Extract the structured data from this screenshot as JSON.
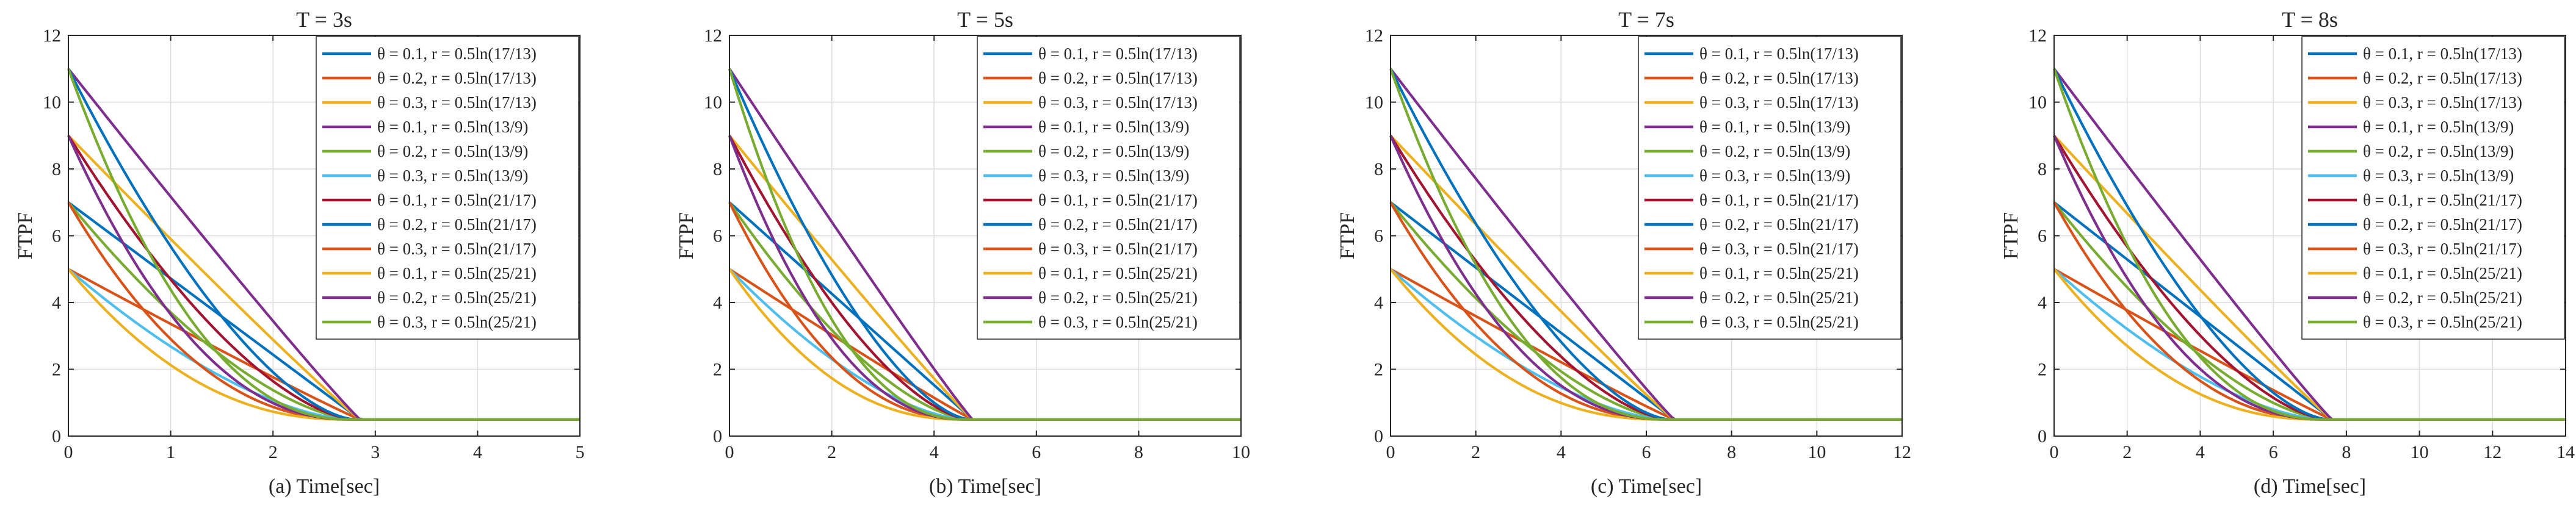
{
  "figure": {
    "ylabel": "FTPF",
    "legend_labels": [
      "θ = 0.1, r = 0.5ln(17/13)",
      "θ = 0.2, r = 0.5ln(17/13)",
      "θ = 0.3, r = 0.5ln(17/13)",
      "θ = 0.1, r = 0.5ln(13/9)",
      "θ = 0.2, r = 0.5ln(13/9)",
      "θ = 0.3, r = 0.5ln(13/9)",
      "θ = 0.1, r = 0.5ln(21/17)",
      "θ = 0.2, r = 0.5ln(21/17)",
      "θ = 0.3, r = 0.5ln(21/17)",
      "θ = 0.1, r = 0.5ln(25/21)",
      "θ = 0.2, r = 0.5ln(25/21)",
      "θ = 0.3, r = 0.5ln(25/21)"
    ],
    "series_colors": [
      "#0072BD",
      "#D95319",
      "#EDB120",
      "#7E2F8E",
      "#77AC30",
      "#4DBEEE",
      "#A2142F",
      "#0072BD",
      "#D95319",
      "#EDB120",
      "#7E2F8E",
      "#77AC30"
    ]
  },
  "chart_data": [
    {
      "type": "line",
      "title": "T = 3s",
      "xlabel": "(a) Time[sec]",
      "ylabel": "FTPF",
      "xlim": [
        0,
        5
      ],
      "ylim": [
        0,
        12
      ],
      "xticks": [
        0,
        1,
        2,
        3,
        4,
        5
      ],
      "yticks": [
        0,
        2,
        4,
        6,
        8,
        10,
        12
      ],
      "grid": true,
      "legend_position": "top-right",
      "settle_value": 0.5,
      "series": [
        {
          "name": "θ = 0.1, r = 0.5ln(17/13)",
          "initial": 7,
          "settle_time": 2.85,
          "exponent": 1.0
        },
        {
          "name": "θ = 0.2, r = 0.5ln(17/13)",
          "initial": 5,
          "settle_time": 2.85,
          "exponent": 1.05
        },
        {
          "name": "θ = 0.3, r = 0.5ln(17/13)",
          "initial": 9,
          "settle_time": 2.85,
          "exponent": 1.05
        },
        {
          "name": "θ = 0.1, r = 0.5ln(13/9)",
          "initial": 11,
          "settle_time": 2.85,
          "exponent": 1.05
        },
        {
          "name": "θ = 0.2, r = 0.5ln(13/9)",
          "initial": 7,
          "settle_time": 2.8,
          "exponent": 1.6
        },
        {
          "name": "θ = 0.3, r = 0.5ln(13/9)",
          "initial": 5,
          "settle_time": 2.75,
          "exponent": 1.6
        },
        {
          "name": "θ = 0.1, r = 0.5ln(21/17)",
          "initial": 9,
          "settle_time": 2.8,
          "exponent": 1.6
        },
        {
          "name": "θ = 0.2, r = 0.5ln(21/17)",
          "initial": 11,
          "settle_time": 2.8,
          "exponent": 1.6
        },
        {
          "name": "θ = 0.3, r = 0.5ln(21/17)",
          "initial": 7,
          "settle_time": 2.75,
          "exponent": 2.2
        },
        {
          "name": "θ = 0.1, r = 0.5ln(25/21)",
          "initial": 5,
          "settle_time": 2.7,
          "exponent": 2.2
        },
        {
          "name": "θ = 0.2, r = 0.5ln(25/21)",
          "initial": 9,
          "settle_time": 2.75,
          "exponent": 2.2
        },
        {
          "name": "θ = 0.3, r = 0.5ln(25/21)",
          "initial": 11,
          "settle_time": 2.75,
          "exponent": 2.2
        }
      ]
    },
    {
      "type": "line",
      "title": "T = 5s",
      "xlabel": "(b) Time[sec]",
      "ylabel": "FTPF",
      "xlim": [
        0,
        10
      ],
      "ylim": [
        0,
        12
      ],
      "xticks": [
        0,
        2,
        4,
        6,
        8,
        10
      ],
      "yticks": [
        0,
        2,
        4,
        6,
        8,
        10,
        12
      ],
      "grid": true,
      "legend_position": "top-right",
      "settle_value": 0.5,
      "series": [
        {
          "name": "θ = 0.1, r = 0.5ln(17/13)",
          "initial": 7,
          "settle_time": 4.75,
          "exponent": 1.0
        },
        {
          "name": "θ = 0.2, r = 0.5ln(17/13)",
          "initial": 5,
          "settle_time": 4.75,
          "exponent": 1.05
        },
        {
          "name": "θ = 0.3, r = 0.5ln(17/13)",
          "initial": 9,
          "settle_time": 4.75,
          "exponent": 1.05
        },
        {
          "name": "θ = 0.1, r = 0.5ln(13/9)",
          "initial": 11,
          "settle_time": 4.75,
          "exponent": 1.05
        },
        {
          "name": "θ = 0.2, r = 0.5ln(13/9)",
          "initial": 7,
          "settle_time": 4.7,
          "exponent": 1.6
        },
        {
          "name": "θ = 0.3, r = 0.5ln(13/9)",
          "initial": 5,
          "settle_time": 4.6,
          "exponent": 1.6
        },
        {
          "name": "θ = 0.1, r = 0.5ln(21/17)",
          "initial": 9,
          "settle_time": 4.7,
          "exponent": 1.6
        },
        {
          "name": "θ = 0.2, r = 0.5ln(21/17)",
          "initial": 11,
          "settle_time": 4.7,
          "exponent": 1.6
        },
        {
          "name": "θ = 0.3, r = 0.5ln(21/17)",
          "initial": 7,
          "settle_time": 4.6,
          "exponent": 2.2
        },
        {
          "name": "θ = 0.1, r = 0.5ln(25/21)",
          "initial": 5,
          "settle_time": 4.5,
          "exponent": 2.2
        },
        {
          "name": "θ = 0.2, r = 0.5ln(25/21)",
          "initial": 9,
          "settle_time": 4.6,
          "exponent": 2.2
        },
        {
          "name": "θ = 0.3, r = 0.5ln(25/21)",
          "initial": 11,
          "settle_time": 4.6,
          "exponent": 2.2
        }
      ]
    },
    {
      "type": "line",
      "title": "T = 7s",
      "xlabel": "(c) Time[sec]",
      "ylabel": "FTPF",
      "xlim": [
        0,
        12
      ],
      "ylim": [
        0,
        12
      ],
      "xticks": [
        0,
        2,
        4,
        6,
        8,
        10,
        12
      ],
      "yticks": [
        0,
        2,
        4,
        6,
        8,
        10,
        12
      ],
      "grid": true,
      "legend_position": "top-right",
      "settle_value": 0.5,
      "series": [
        {
          "name": "θ = 0.1, r = 0.5ln(17/13)",
          "initial": 7,
          "settle_time": 6.65,
          "exponent": 1.0
        },
        {
          "name": "θ = 0.2, r = 0.5ln(17/13)",
          "initial": 5,
          "settle_time": 6.65,
          "exponent": 1.05
        },
        {
          "name": "θ = 0.3, r = 0.5ln(17/13)",
          "initial": 9,
          "settle_time": 6.65,
          "exponent": 1.05
        },
        {
          "name": "θ = 0.1, r = 0.5ln(13/9)",
          "initial": 11,
          "settle_time": 6.65,
          "exponent": 1.05
        },
        {
          "name": "θ = 0.2, r = 0.5ln(13/9)",
          "initial": 7,
          "settle_time": 6.55,
          "exponent": 1.6
        },
        {
          "name": "θ = 0.3, r = 0.5ln(13/9)",
          "initial": 5,
          "settle_time": 6.45,
          "exponent": 1.6
        },
        {
          "name": "θ = 0.1, r = 0.5ln(21/17)",
          "initial": 9,
          "settle_time": 6.55,
          "exponent": 1.6
        },
        {
          "name": "θ = 0.2, r = 0.5ln(21/17)",
          "initial": 11,
          "settle_time": 6.55,
          "exponent": 1.6
        },
        {
          "name": "θ = 0.3, r = 0.5ln(21/17)",
          "initial": 7,
          "settle_time": 6.45,
          "exponent": 2.2
        },
        {
          "name": "θ = 0.1, r = 0.5ln(25/21)",
          "initial": 5,
          "settle_time": 6.3,
          "exponent": 2.2
        },
        {
          "name": "θ = 0.2, r = 0.5ln(25/21)",
          "initial": 9,
          "settle_time": 6.45,
          "exponent": 2.2
        },
        {
          "name": "θ = 0.3, r = 0.5ln(25/21)",
          "initial": 11,
          "settle_time": 6.45,
          "exponent": 2.2
        }
      ]
    },
    {
      "type": "line",
      "title": "T = 8s",
      "xlabel": "(d) Time[sec]",
      "ylabel": "FTPF",
      "xlim": [
        0,
        14
      ],
      "ylim": [
        0,
        12
      ],
      "xticks": [
        0,
        2,
        4,
        6,
        8,
        10,
        12,
        14
      ],
      "yticks": [
        0,
        2,
        4,
        6,
        8,
        10,
        12
      ],
      "grid": true,
      "legend_position": "top-right",
      "settle_value": 0.5,
      "series": [
        {
          "name": "θ = 0.1, r = 0.5ln(17/13)",
          "initial": 7,
          "settle_time": 7.6,
          "exponent": 1.0
        },
        {
          "name": "θ = 0.2, r = 0.5ln(17/13)",
          "initial": 5,
          "settle_time": 7.6,
          "exponent": 1.05
        },
        {
          "name": "θ = 0.3, r = 0.5ln(17/13)",
          "initial": 9,
          "settle_time": 7.6,
          "exponent": 1.05
        },
        {
          "name": "θ = 0.1, r = 0.5ln(13/9)",
          "initial": 11,
          "settle_time": 7.6,
          "exponent": 1.05
        },
        {
          "name": "θ = 0.2, r = 0.5ln(13/9)",
          "initial": 7,
          "settle_time": 7.5,
          "exponent": 1.6
        },
        {
          "name": "θ = 0.3, r = 0.5ln(13/9)",
          "initial": 5,
          "settle_time": 7.35,
          "exponent": 1.6
        },
        {
          "name": "θ = 0.1, r = 0.5ln(21/17)",
          "initial": 9,
          "settle_time": 7.5,
          "exponent": 1.6
        },
        {
          "name": "θ = 0.2, r = 0.5ln(21/17)",
          "initial": 11,
          "settle_time": 7.5,
          "exponent": 1.6
        },
        {
          "name": "θ = 0.3, r = 0.5ln(21/17)",
          "initial": 7,
          "settle_time": 7.35,
          "exponent": 2.2
        },
        {
          "name": "θ = 0.1, r = 0.5ln(25/21)",
          "initial": 5,
          "settle_time": 7.2,
          "exponent": 2.2
        },
        {
          "name": "θ = 0.2, r = 0.5ln(25/21)",
          "initial": 9,
          "settle_time": 7.35,
          "exponent": 2.2
        },
        {
          "name": "θ = 0.3, r = 0.5ln(25/21)",
          "initial": 11,
          "settle_time": 7.35,
          "exponent": 2.2
        }
      ]
    }
  ]
}
